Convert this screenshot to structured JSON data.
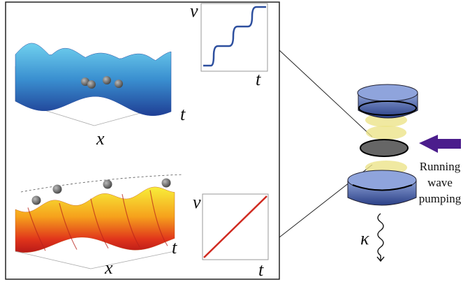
{
  "top_panel": {
    "inset": {
      "y_label": "v",
      "x_label": "t"
    },
    "surface": {
      "x_label": "x",
      "t_label": "t"
    }
  },
  "bottom_panel": {
    "inset": {
      "y_label": "v",
      "x_label": "t"
    },
    "surface": {
      "x_label": "x",
      "t_label": "t"
    }
  },
  "cavity": {
    "pump_label": [
      "Running",
      "wave",
      "pumping"
    ],
    "decay_label": "κ"
  }
}
